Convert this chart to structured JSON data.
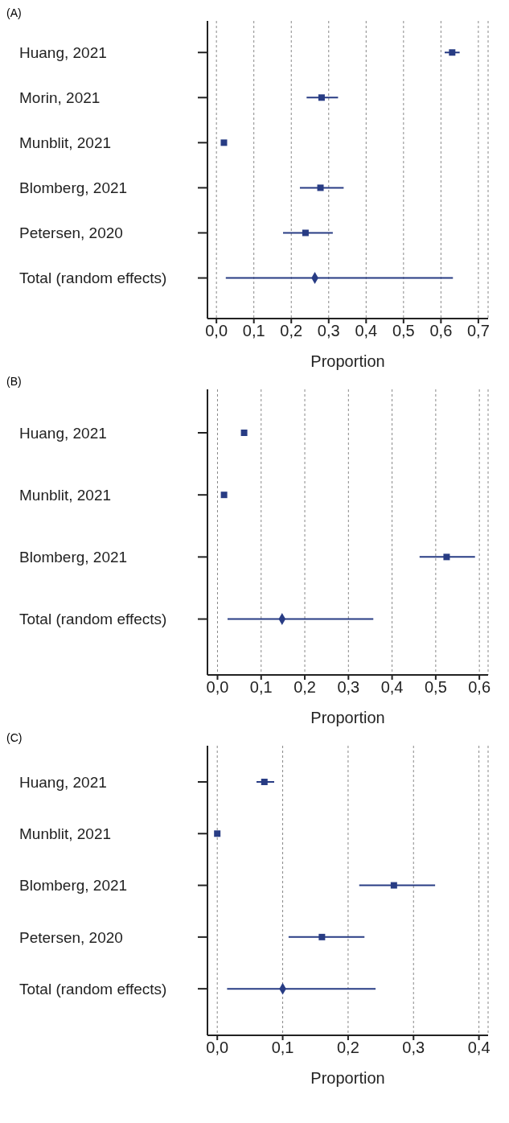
{
  "chart_data": [
    {
      "type": "scatter",
      "title": "(A)",
      "xlabel": "Proportion",
      "orientation": "horizontal",
      "grid": "x",
      "categories": [
        "Huang, 2021",
        "Morin, 2021",
        "Munblit, 2021",
        "Blomberg, 2021",
        "Petersen, 2020",
        "Total (random effects)"
      ],
      "xlim": [
        -0.024,
        0.726
      ],
      "xticks": [
        {
          "value": 0,
          "label": "0,0"
        },
        {
          "value": 0.1,
          "label": "0,1"
        },
        {
          "value": 0.2,
          "label": "0,2"
        },
        {
          "value": 0.3,
          "label": "0,3"
        },
        {
          "value": 0.4,
          "label": "0,4"
        },
        {
          "value": 0.5,
          "label": "0,5"
        },
        {
          "value": 0.6,
          "label": "0,6"
        },
        {
          "value": 0.7,
          "label": "0,7"
        }
      ],
      "series": [
        {
          "marker": "square",
          "color": "#283c84",
          "values": [
            0.63,
            0.281,
            0.02,
            0.278,
            0.238,
            null
          ],
          "errors": [
            [
              0.61,
              0.65
            ],
            [
              0.241,
              0.325
            ],
            null,
            [
              0.223,
              0.34
            ],
            [
              0.178,
              0.311
            ],
            null
          ]
        },
        {
          "marker": "diamond",
          "color": "#283c84",
          "values": [
            null,
            null,
            null,
            null,
            null,
            0.263
          ],
          "errors": [
            null,
            null,
            null,
            null,
            null,
            [
              0.025,
              0.632
            ]
          ]
        }
      ]
    },
    {
      "type": "scatter",
      "title": "(B)",
      "xlabel": "Proportion",
      "orientation": "horizontal",
      "grid": "x",
      "categories": [
        "Huang, 2021",
        "Munblit, 2021",
        "Blomberg, 2021",
        "Total (random effects)"
      ],
      "xlim": [
        -0.023,
        0.62
      ],
      "xticks": [
        {
          "value": 0,
          "label": "0,0"
        },
        {
          "value": 0.1,
          "label": "0,1"
        },
        {
          "value": 0.2,
          "label": "0,2"
        },
        {
          "value": 0.3,
          "label": "0,3"
        },
        {
          "value": 0.4,
          "label": "0,4"
        },
        {
          "value": 0.5,
          "label": "0,5"
        },
        {
          "value": 0.6,
          "label": "0,6"
        }
      ],
      "series": [
        {
          "marker": "square",
          "color": "#283c84",
          "values": [
            0.061,
            0.015,
            0.525,
            null
          ],
          "errors": [
            null,
            null,
            [
              0.463,
              0.59
            ],
            null
          ]
        },
        {
          "marker": "diamond",
          "color": "#283c84",
          "values": [
            null,
            null,
            null,
            0.148
          ],
          "errors": [
            null,
            null,
            null,
            [
              0.023,
              0.357
            ]
          ]
        }
      ]
    },
    {
      "type": "scatter",
      "title": "(C)",
      "xlabel": "Proportion",
      "orientation": "horizontal",
      "grid": "x",
      "categories": [
        "Huang, 2021",
        "Munblit, 2021",
        "Blomberg, 2021",
        "Petersen, 2020",
        "Total (random effects)"
      ],
      "xlim": [
        -0.015,
        0.414
      ],
      "xticks": [
        {
          "value": 0,
          "label": "0,0"
        },
        {
          "value": 0.1,
          "label": "0,1"
        },
        {
          "value": 0.2,
          "label": "0,2"
        },
        {
          "value": 0.3,
          "label": "0,3"
        },
        {
          "value": 0.4,
          "label": "0,4"
        }
      ],
      "series": [
        {
          "marker": "square",
          "color": "#283c84",
          "values": [
            0.072,
            0.0,
            0.27,
            0.16,
            null
          ],
          "errors": [
            [
              0.06,
              0.087
            ],
            null,
            [
              0.217,
              0.333
            ],
            [
              0.109,
              0.225
            ],
            null
          ]
        },
        {
          "marker": "diamond",
          "color": "#283c84",
          "values": [
            null,
            null,
            null,
            null,
            0.1
          ],
          "errors": [
            null,
            null,
            null,
            null,
            [
              0.015,
              0.242
            ]
          ]
        }
      ]
    }
  ]
}
